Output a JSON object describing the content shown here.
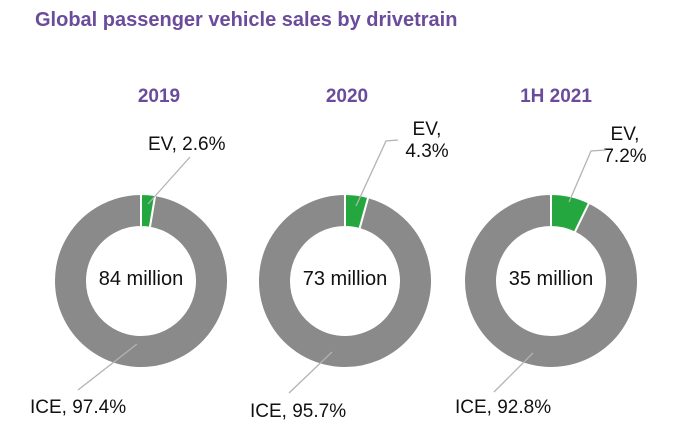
{
  "title": "Global passenger vehicle sales by drivetrain",
  "colors": {
    "title_purple": "#6a4c9b",
    "ev_green": "#23a73e",
    "ice_gray": "#8a8a8a",
    "leader_line_gray": "#b3b3b3",
    "label_black": "#111111",
    "slice_border_white": "#ffffff"
  },
  "chart_data": [
    {
      "type": "pie",
      "donut": true,
      "title": "2019",
      "categories": [
        "EV",
        "ICE"
      ],
      "values": [
        2.6,
        97.4
      ],
      "unit": "percent",
      "start_angle_deg": 0,
      "direction": "clockwise",
      "legend_position": "none",
      "center_label": "84 million",
      "ev_label_display": "EV, 2.6%",
      "ice_label_display": "ICE, 97.4%"
    },
    {
      "type": "pie",
      "donut": true,
      "title": "2020",
      "categories": [
        "EV",
        "ICE"
      ],
      "values": [
        4.3,
        95.7
      ],
      "unit": "percent",
      "start_angle_deg": 0,
      "direction": "clockwise",
      "legend_position": "none",
      "center_label": "73 million",
      "ev_label_display": "EV,\n4.3%",
      "ice_label_display": "ICE, 95.7%"
    },
    {
      "type": "pie",
      "donut": true,
      "title": "1H 2021",
      "categories": [
        "EV",
        "ICE"
      ],
      "values": [
        7.2,
        92.8
      ],
      "unit": "percent",
      "start_angle_deg": 0,
      "direction": "clockwise",
      "legend_position": "none",
      "center_label": "35 million",
      "ev_label_display": "EV,\n7.2%",
      "ice_label_display": "ICE, 92.8%"
    }
  ]
}
